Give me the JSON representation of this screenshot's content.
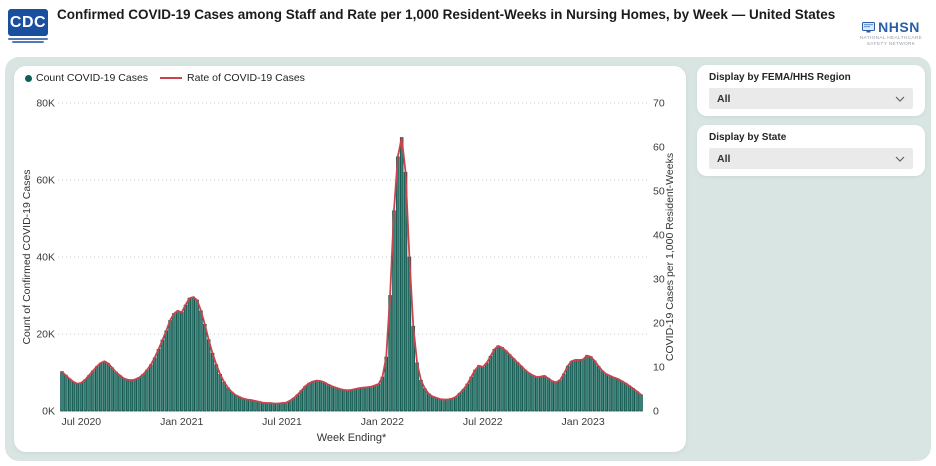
{
  "header": {
    "title": "Confirmed COVID-19 Cases among Staff and Rate per 1,000 Resident-Weeks in Nursing Homes, by Week — United States",
    "cdc_logo_text": "CDC",
    "nhsn_logo_text": "NHSN",
    "nhsn_sub_line1": "NATIONAL HEALTHCARE",
    "nhsn_sub_line2": "SAFETY NETWORK"
  },
  "filters": {
    "region": {
      "label": "Display by FEMA/HHS Region",
      "value": "All"
    },
    "state": {
      "label": "Display by State",
      "value": "All"
    }
  },
  "chart_data": {
    "type": "combo-bar-line",
    "title": "Confirmed COVID-19 Cases among Staff and Rate per 1,000 Resident-Weeks in Nursing Homes, by Week — United States",
    "xlabel": "Week Ending*",
    "ylabel_left": "Count of Confirmed COVID-19 Cases",
    "ylabel_right": "COVID-19 Cases per 1,000 Resident-Weeks",
    "ylim_left": [
      0,
      80000
    ],
    "ylim_right": [
      0,
      70
    ],
    "y_left_ticks": [
      "0K",
      "20K",
      "40K",
      "60K",
      "80K"
    ],
    "y_right_ticks": [
      "0",
      "10",
      "20",
      "30",
      "40",
      "50",
      "60",
      "70"
    ],
    "x_tick_labels": [
      "Jul 2020",
      "Jan 2021",
      "Jul 2021",
      "Jan 2022",
      "Jul 2022",
      "Jan 2023"
    ],
    "x_tick_indices": [
      5,
      31,
      57,
      83,
      109,
      135
    ],
    "grid": "dotted-horizontal",
    "legend_position": "top-left",
    "legend": [
      {
        "label": "Count COVID-19 Cases",
        "marker": "dot",
        "color": "#0d6055"
      },
      {
        "label": "Rate of COVID-19 Cases",
        "marker": "line",
        "color": "#c9444d"
      }
    ],
    "bar_fill": "#3a847a",
    "bar_stroke": "#0b4d45",
    "line_color": "#c9444d",
    "series": [
      {
        "name": "Count COVID-19 Cases",
        "axis": "left",
        "values": [
          10200,
          9300,
          8300,
          7500,
          7100,
          7300,
          8100,
          9200,
          10400,
          11500,
          12400,
          12900,
          12300,
          11200,
          10100,
          9200,
          8500,
          8100,
          8000,
          8200,
          8700,
          9500,
          10600,
          12000,
          13800,
          16000,
          18400,
          20800,
          23500,
          25300,
          26000,
          25600,
          27500,
          29300,
          29600,
          28800,
          26000,
          22500,
          18500,
          15000,
          12000,
          9500,
          7500,
          6000,
          4900,
          4100,
          3600,
          3200,
          3000,
          2800,
          2600,
          2400,
          2200,
          2100,
          2000,
          1900,
          1900,
          2000,
          2200,
          2600,
          3300,
          4200,
          5300,
          6400,
          7200,
          7700,
          7900,
          7800,
          7400,
          6900,
          6400,
          6000,
          5700,
          5500,
          5400,
          5500,
          5700,
          5900,
          6100,
          6200,
          6300,
          6600,
          7000,
          8800,
          14000,
          30000,
          52000,
          66000,
          71000,
          62000,
          40000,
          22000,
          12500,
          8000,
          5800,
          4500,
          3800,
          3400,
          3100,
          3000,
          3000,
          3200,
          3600,
          4600,
          5600,
          7000,
          8800,
          10600,
          11800,
          11400,
          12400,
          14200,
          16000,
          16900,
          16500,
          15600,
          14600,
          13600,
          12600,
          11600,
          10600,
          9800,
          9200,
          8800,
          8900,
          9100,
          8500,
          7800,
          7400,
          8000,
          9600,
          11600,
          12900,
          13300,
          13200,
          13400,
          14400,
          14100,
          13000,
          11600,
          10400,
          9600,
          9100,
          8700,
          8300,
          7800,
          7200,
          6500,
          5800,
          5000,
          4200
        ]
      },
      {
        "name": "Rate of COVID-19 Cases",
        "axis": "right",
        "values": [
          8.9,
          8.1,
          7.3,
          6.6,
          6.2,
          6.4,
          7.1,
          8.1,
          9.1,
          10.1,
          10.9,
          11.3,
          10.8,
          9.8,
          8.8,
          8.1,
          7.4,
          7.1,
          7.0,
          7.2,
          7.6,
          8.3,
          9.3,
          10.5,
          12.1,
          14.0,
          16.1,
          18.2,
          20.6,
          22.1,
          22.8,
          22.4,
          24.1,
          25.6,
          25.9,
          25.2,
          22.8,
          19.7,
          16.2,
          13.1,
          10.5,
          8.3,
          6.6,
          5.3,
          4.3,
          3.6,
          3.2,
          2.8,
          2.6,
          2.5,
          2.3,
          2.1,
          1.9,
          1.8,
          1.8,
          1.7,
          1.7,
          1.8,
          1.9,
          2.3,
          2.9,
          3.7,
          4.6,
          5.6,
          6.3,
          6.7,
          6.9,
          6.8,
          6.5,
          6.0,
          5.6,
          5.3,
          5.0,
          4.8,
          4.7,
          4.8,
          5.0,
          5.2,
          5.3,
          5.4,
          5.5,
          5.8,
          6.1,
          7.7,
          12.3,
          26.3,
          45.5,
          57.8,
          62.1,
          54.3,
          35.0,
          19.3,
          10.9,
          7.0,
          5.1,
          3.9,
          3.3,
          3.0,
          2.7,
          2.6,
          2.6,
          2.8,
          3.2,
          4.0,
          4.9,
          6.1,
          7.7,
          9.3,
          10.3,
          10.0,
          10.9,
          12.4,
          14.0,
          14.8,
          14.4,
          13.7,
          12.8,
          11.9,
          11.0,
          10.2,
          9.3,
          8.6,
          8.1,
          7.7,
          7.8,
          8.0,
          7.4,
          6.8,
          6.5,
          7.0,
          8.4,
          10.2,
          11.3,
          11.6,
          11.6,
          11.7,
          12.6,
          12.3,
          11.4,
          10.2,
          9.1,
          8.4,
          8.0,
          7.6,
          7.3,
          6.8,
          6.3,
          5.7,
          5.1,
          4.4,
          3.7
        ]
      }
    ]
  }
}
